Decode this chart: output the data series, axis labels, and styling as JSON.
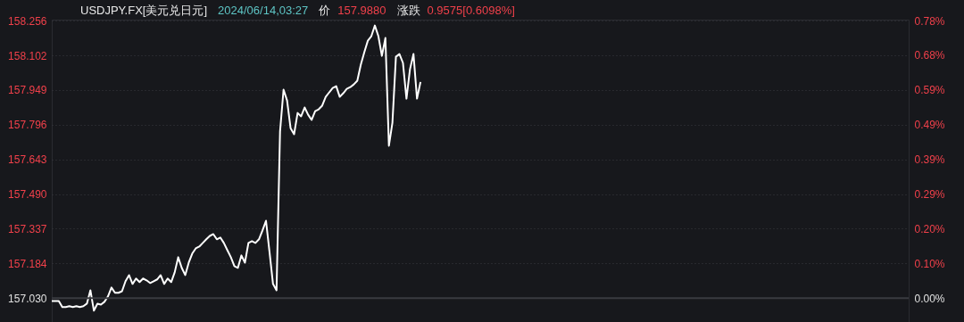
{
  "chart_data": {
    "type": "line",
    "title": "USDJPY.FX[美元兑日元]",
    "annotations": [
      "2024/06/14,03:27",
      "价",
      "157.9880",
      "涨跌",
      "0.9575[0.6098%]"
    ],
    "categories": [
      null,
      null,
      null,
      null,
      null,
      null,
      null,
      null,
      null,
      null,
      null,
      null,
      null,
      null,
      null,
      null,
      null,
      null,
      null,
      null,
      null,
      null,
      null,
      null,
      null,
      null,
      null,
      null,
      null,
      null,
      null,
      null,
      null,
      null,
      null,
      null,
      null,
      null,
      null,
      null,
      null,
      null,
      null,
      null,
      null,
      null,
      null,
      null,
      null,
      null,
      null,
      null,
      null,
      null,
      null,
      null,
      null,
      null,
      null,
      null,
      null,
      null,
      null,
      null,
      null,
      null,
      null,
      null,
      null,
      null,
      null,
      null,
      null,
      null,
      null,
      null,
      null,
      null,
      null,
      null,
      null,
      null,
      null,
      null,
      null,
      null,
      null,
      null,
      null,
      null,
      null,
      null,
      null,
      null,
      null,
      null,
      null,
      null,
      null,
      null,
      null,
      null,
      null,
      null,
      null,
      null,
      null,
      null,
      null,
      null,
      null,
      null,
      null,
      null,
      null,
      null,
      null,
      null,
      null,
      null,
      null,
      null,
      null,
      null,
      null,
      null,
      null,
      null,
      null,
      null,
      null,
      null,
      null,
      null,
      null,
      null,
      null,
      null,
      null,
      null,
      null,
      null,
      null,
      null,
      null,
      null,
      null,
      null,
      null,
      null,
      null,
      null,
      null,
      null,
      null,
      null,
      null,
      null,
      null,
      null,
      null,
      null,
      null,
      null,
      null,
      null,
      null,
      null,
      null,
      null,
      null,
      null,
      null,
      null,
      null,
      null,
      null,
      null,
      null,
      null,
      null,
      null,
      null,
      null,
      null,
      null,
      null,
      null,
      null,
      null,
      null,
      null,
      null,
      null,
      null,
      null,
      null,
      null,
      null,
      null,
      null,
      null,
      null,
      null,
      null,
      null,
      null,
      null,
      null,
      null,
      null,
      null,
      null,
      null,
      null,
      null,
      null,
      null,
      null,
      null,
      null,
      null,
      null,
      null,
      null,
      null,
      null,
      null,
      null,
      null,
      null,
      null,
      null,
      null,
      null,
      null,
      null,
      null,
      null,
      null,
      null,
      null,
      null,
      null,
      null
    ],
    "series": [
      {
        "color": "#ffffff",
        "values": [
          157.018,
          157.018,
          157.018,
          156.991,
          156.991,
          156.995,
          156.991,
          156.995,
          156.991,
          156.995,
          157.006,
          157.065,
          156.975,
          157.006,
          157.002,
          157.014,
          157.038,
          157.077,
          157.054,
          157.054,
          157.061,
          157.105,
          157.132,
          157.093,
          157.117,
          157.101,
          157.117,
          157.109,
          157.097,
          157.105,
          157.113,
          157.132,
          157.093,
          157.117,
          157.101,
          157.144,
          157.211,
          157.164,
          157.132,
          157.187,
          157.227,
          157.25,
          157.258,
          157.274,
          157.29,
          157.305,
          157.313,
          157.29,
          157.298,
          157.274,
          157.242,
          157.211,
          157.172,
          157.164,
          157.219,
          157.187,
          157.274,
          157.282,
          157.274,
          157.29,
          157.329,
          157.372,
          157.235,
          157.093,
          157.065,
          157.766,
          157.951,
          157.903,
          157.781,
          157.754,
          157.848,
          157.833,
          157.872,
          157.84,
          157.817,
          157.856,
          157.864,
          157.88,
          157.919,
          157.939,
          157.958,
          157.966,
          157.919,
          157.935,
          157.954,
          157.962,
          157.974,
          157.99,
          158.061,
          158.116,
          158.167,
          158.187,
          158.234,
          158.187,
          158.1,
          158.179,
          157.703,
          157.805,
          158.096,
          158.108,
          158.069,
          157.911,
          158.041,
          158.108,
          157.911,
          157.985,
          null,
          null,
          null,
          null,
          null,
          null,
          null,
          null,
          null,
          null,
          null,
          null,
          null,
          null,
          null,
          null,
          null,
          null,
          null,
          null,
          null,
          null,
          null,
          null,
          null,
          null,
          null,
          null,
          null,
          null,
          null,
          null,
          null,
          null,
          null,
          null,
          null,
          null,
          null,
          null,
          null,
          null,
          null,
          null,
          null,
          null,
          null,
          null,
          null,
          null,
          null,
          null,
          null,
          null,
          null,
          null,
          null,
          null,
          null,
          null,
          null,
          null,
          null,
          null,
          null,
          null,
          null,
          null,
          null,
          null,
          null,
          null,
          null,
          null,
          null,
          null,
          null,
          null,
          null,
          null,
          null,
          null,
          null,
          null,
          null,
          null,
          null,
          null,
          null,
          null,
          null,
          null,
          null,
          null,
          null,
          null,
          null,
          null,
          null,
          null,
          null,
          null,
          null,
          null,
          null,
          null,
          null,
          null,
          null,
          null,
          null,
          null,
          null,
          null,
          null,
          null,
          null,
          null,
          null,
          null,
          null,
          null,
          null,
          null,
          null,
          null,
          null,
          null,
          null,
          null,
          null,
          null,
          null,
          null,
          null,
          null,
          null,
          null,
          null
        ]
      }
    ],
    "ylim": [
      156.925,
      158.26
    ],
    "yticks": [
      {
        "value": 157.03,
        "label": "157.030"
      },
      157.184,
      157.337,
      {
        "value": 157.49,
        "label": "157.490"
      },
      157.643,
      157.796,
      157.949,
      158.102,
      158.256
    ],
    "y2lim": [
      -0.067,
      0.783
    ],
    "y2ticks": [
      {
        "value": 0,
        "label": "0.00%"
      },
      {
        "value": 0.098,
        "label": "0.10%"
      },
      {
        "value": 0.196,
        "label": "0.20%"
      },
      {
        "value": 0.293,
        "label": "0.29%"
      },
      {
        "value": 0.39,
        "label": "0.39%"
      },
      {
        "value": 0.488,
        "label": "0.49%"
      },
      {
        "value": 0.585,
        "label": "0.59%"
      },
      {
        "value": 0.683,
        "label": "0.68%"
      },
      {
        "value": 0.78,
        "label": "0.78%"
      }
    ],
    "ref_lines": [
      {
        "axis": "y",
        "value": 157.03,
        "color": "#3a3b40"
      }
    ],
    "grid": "y",
    "marker": "none",
    "line_style": "solid"
  }
}
